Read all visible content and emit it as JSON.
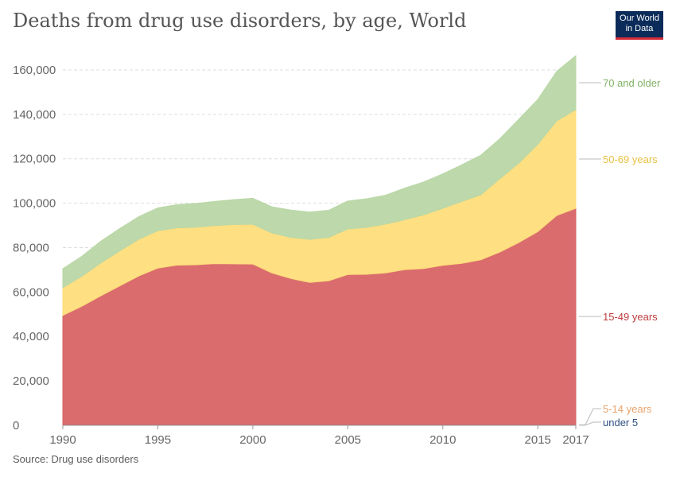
{
  "header": {
    "title": "Deaths from drug use disorders, by age, World",
    "logo_line1": "Our World",
    "logo_line2": "in Data"
  },
  "footer": {
    "source": "Source: Drug use disorders"
  },
  "chart_data": {
    "type": "area",
    "stacked": true,
    "title": "Deaths from drug use disorders, by age, World",
    "xlabel": "",
    "ylabel": "",
    "xlim": [
      1990,
      2017
    ],
    "ylim": [
      0,
      170000
    ],
    "grid": true,
    "legend": "right",
    "x_ticks": [
      "1990",
      "1995",
      "2000",
      "2005",
      "2010",
      "2015",
      "2017"
    ],
    "y_ticks": [
      "0",
      "20,000",
      "40,000",
      "60,000",
      "80,000",
      "100,000",
      "120,000",
      "140,000",
      "160,000"
    ],
    "x": [
      1990,
      1991,
      1992,
      1993,
      1994,
      1995,
      1996,
      1997,
      1998,
      1999,
      2000,
      2001,
      2002,
      2003,
      2004,
      2005,
      2006,
      2007,
      2008,
      2009,
      2010,
      2011,
      2012,
      2013,
      2014,
      2015,
      2016,
      2017
    ],
    "series": [
      {
        "name": "under 5",
        "color": "#3d5a8c",
        "values": [
          100,
          100,
          100,
          100,
          100,
          100,
          100,
          100,
          100,
          100,
          100,
          100,
          100,
          100,
          100,
          100,
          100,
          100,
          100,
          100,
          100,
          100,
          100,
          100,
          100,
          100,
          100,
          100
        ]
      },
      {
        "name": "5-14 years",
        "color": "#f2a26b",
        "values": [
          200,
          200,
          200,
          200,
          200,
          200,
          200,
          200,
          200,
          200,
          200,
          200,
          200,
          200,
          200,
          200,
          200,
          200,
          200,
          200,
          200,
          200,
          200,
          200,
          200,
          200,
          200,
          200
        ]
      },
      {
        "name": "15-49 years",
        "color": "#d86466",
        "values": [
          49200,
          53300,
          58000,
          62500,
          67000,
          70500,
          71800,
          72000,
          72500,
          72400,
          72300,
          68300,
          65800,
          64000,
          64800,
          67600,
          67700,
          68300,
          69800,
          70300,
          71700,
          72600,
          74200,
          77700,
          82000,
          86900,
          94200,
          97400
        ]
      },
      {
        "name": "50-69 years",
        "color": "#fedd7b",
        "values": [
          12500,
          13500,
          14800,
          15800,
          16500,
          16800,
          16800,
          16900,
          17100,
          17700,
          17900,
          18000,
          18500,
          19400,
          19500,
          20500,
          21100,
          22000,
          22500,
          24200,
          25700,
          27900,
          29300,
          33000,
          35700,
          39300,
          42600,
          44400
        ]
      },
      {
        "name": "70 and older",
        "color": "#b9d7a6",
        "values": [
          8500,
          9000,
          9800,
          10000,
          10200,
          10300,
          10400,
          10700,
          10900,
          11200,
          11700,
          11800,
          12300,
          12300,
          12200,
          12600,
          12900,
          13000,
          14200,
          14800,
          15500,
          16500,
          17800,
          18000,
          19800,
          20200,
          22300,
          24300
        ]
      }
    ]
  }
}
